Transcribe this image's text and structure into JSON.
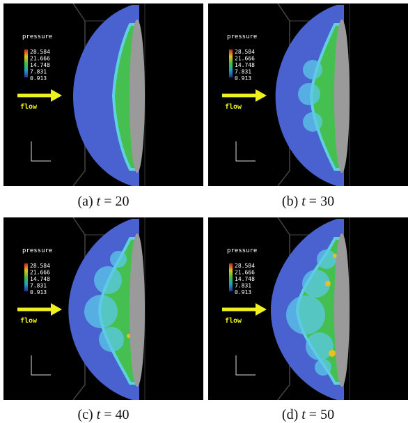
{
  "legend": {
    "title": "pressure",
    "ticks": [
      "28.584",
      "21.666",
      "14.748",
      "7.831",
      "0.913"
    ]
  },
  "flow_label": "flow",
  "panels": [
    {
      "label": "(a)",
      "variable": "t",
      "equals": "= 20"
    },
    {
      "label": "(b)",
      "variable": "t",
      "equals": "= 30"
    },
    {
      "label": "(c)",
      "variable": "t",
      "equals": "= 40"
    },
    {
      "label": "(d)",
      "variable": "t",
      "equals": "= 50"
    }
  ]
}
